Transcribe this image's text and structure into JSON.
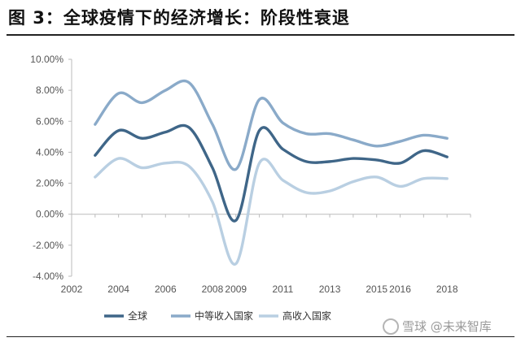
{
  "header": {
    "title": "图 3：全球疫情下的经济增长：阶段性衰退"
  },
  "watermark": {
    "text": "雪球 @未来智库"
  },
  "colors": {
    "global": "#3f6688",
    "middle_income": "#8aaac9",
    "high_income": "#b9cfe2",
    "axis": "#bbbbbb"
  },
  "chart_data": {
    "type": "line",
    "title": "",
    "xlabel": "",
    "ylabel": "",
    "xlim": [
      2002,
      2019
    ],
    "ylim": [
      -4.0,
      10.0
    ],
    "x_ticks": [
      2002,
      2004,
      2006,
      2008,
      2009,
      2011,
      2013,
      2015,
      2016,
      2018
    ],
    "y_ticks": [
      10.0,
      8.0,
      6.0,
      4.0,
      2.0,
      0.0,
      -2.0,
      -4.0
    ],
    "y_tick_labels": [
      "10.00%",
      "8.00%",
      "6.00%",
      "4.00%",
      "2.00%",
      "0.00%",
      "-2.00%",
      "-4.00%"
    ],
    "grid": false,
    "legend_position": "bottom",
    "smooth": true,
    "x": [
      2003,
      2004,
      2005,
      2006,
      2007,
      2008,
      2009,
      2010,
      2011,
      2012,
      2013,
      2014,
      2015,
      2016,
      2017,
      2018,
      2019
    ],
    "series": [
      {
        "name": "全球",
        "color": "#3f6688",
        "values": [
          3.8,
          5.4,
          4.9,
          5.3,
          5.6,
          3.0,
          -0.4,
          5.4,
          4.2,
          3.4,
          3.4,
          3.6,
          3.5,
          3.3,
          4.1,
          3.7,
          null
        ]
      },
      {
        "name": "中等收入国家",
        "color": "#8aaac9",
        "values": [
          5.8,
          7.8,
          7.2,
          8.0,
          8.5,
          5.8,
          2.9,
          7.4,
          5.9,
          5.2,
          5.2,
          4.8,
          4.4,
          4.7,
          5.1,
          4.9,
          null
        ]
      },
      {
        "name": "高收入国家",
        "color": "#b9cfe2",
        "values": [
          2.4,
          3.6,
          3.0,
          3.3,
          3.1,
          0.8,
          -3.2,
          3.3,
          2.2,
          1.4,
          1.5,
          2.1,
          2.4,
          1.8,
          2.3,
          2.3,
          null
        ]
      }
    ]
  }
}
